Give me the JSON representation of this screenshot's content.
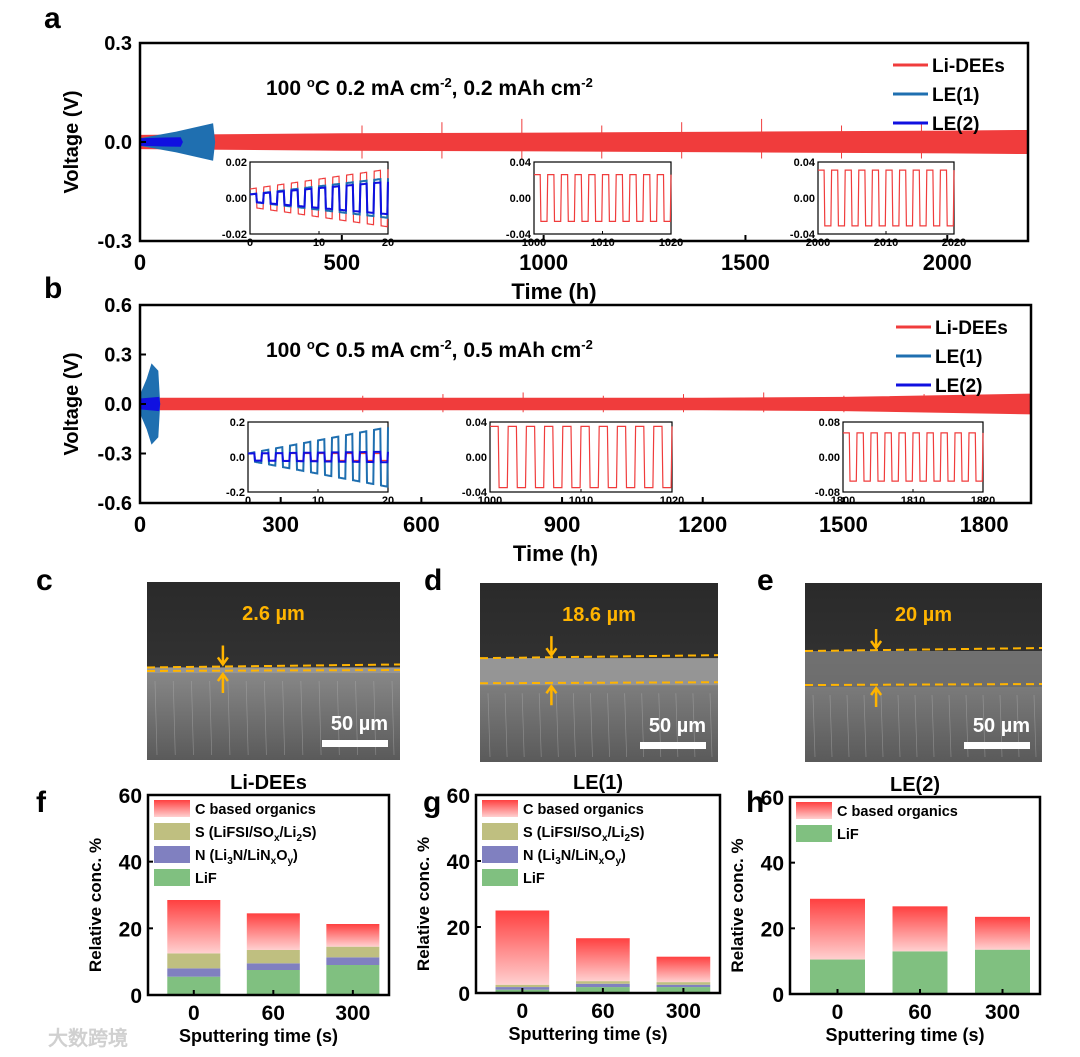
{
  "panel_labels": {
    "a": "a",
    "b": "b",
    "c": "c",
    "d": "d",
    "e": "e",
    "f": "f",
    "g": "g",
    "h": "h"
  },
  "colors": {
    "li_dees": "#f03c3c",
    "le1": "#1f6fb0",
    "le2": "#1010e0",
    "c_org_top": "#ff4040",
    "c_org_bottom": "#ffc8c8",
    "s": "#bfbf80",
    "n": "#8080c0",
    "lif": "#80c080",
    "sem_label": "#ffb400"
  },
  "watermark": "大数跨境",
  "chart_data": [
    {
      "id": "a",
      "type": "line",
      "annotation": "100 ºC 0.2 mA cm⁻², 0.2 mAh cm⁻²",
      "annotation_parts": {
        "pre": "100 ",
        "sup1": "o",
        "mid": "C 0.2 mA cm",
        "sup2": "-2",
        "mid2": ", 0.2 mAh cm",
        "sup3": "-2"
      },
      "xlabel": "Time (h)",
      "ylabel": "Voltage (V)",
      "xlim": [
        0,
        2200
      ],
      "ylim": [
        -0.3,
        0.3
      ],
      "xticks": [
        "0",
        "500",
        "1000",
        "1500",
        "2000"
      ],
      "xtick_values": [
        0,
        500,
        1000,
        1500,
        2000
      ],
      "yticks": [
        "0.3",
        "0.0",
        "-0.3"
      ],
      "ytick_values": [
        0.3,
        0,
        -0.3
      ],
      "legend": [
        "Li-DEEs",
        "LE(1)",
        "LE(2)"
      ],
      "legend_position": "top-right",
      "series": [
        {
          "name": "Li-DEEs",
          "envelope": [
            [
              0,
              0.02
            ],
            [
              500,
              0.025
            ],
            [
              1000,
              0.027
            ],
            [
              1500,
              0.03
            ],
            [
              2000,
              0.033
            ],
            [
              2200,
              0.035
            ]
          ]
        },
        {
          "name": "LE(1)",
          "envelope": [
            [
              0,
              0.01
            ],
            [
              90,
              0.03
            ],
            [
              180,
              0.055
            ],
            [
              185,
              0.0
            ]
          ]
        },
        {
          "name": "LE(2)",
          "envelope": [
            [
              0,
              0.01
            ],
            [
              60,
              0.012
            ],
            [
              100,
              0.013
            ],
            [
              105,
              0.0
            ]
          ]
        }
      ],
      "insets": [
        {
          "xlim": [
            0,
            20
          ],
          "ylim": [
            -0.02,
            0.02
          ],
          "xticks": [
            "0",
            "10",
            "20"
          ],
          "yticks": [
            "0.02",
            "0.00",
            "-0.02"
          ],
          "period_h": 2,
          "series": [
            {
              "name": "Li-DEEs",
              "amp": [
                0.005,
                0.016
              ]
            },
            {
              "name": "LE(1)",
              "amp": [
                0.002,
                0.011
              ]
            },
            {
              "name": "LE(2)",
              "amp": [
                0.002,
                0.009
              ]
            }
          ]
        },
        {
          "xlim": [
            1000,
            1020
          ],
          "ylim": [
            -0.04,
            0.04
          ],
          "xticks": [
            "1000",
            "1010",
            "1020"
          ],
          "yticks": [
            "0.04",
            "0.00",
            "-0.04"
          ],
          "period_h": 2,
          "series": [
            {
              "name": "Li-DEEs",
              "amp": [
                0.026,
                0.026
              ]
            }
          ]
        },
        {
          "xlim": [
            2000,
            2020
          ],
          "ylim": [
            -0.04,
            0.04
          ],
          "xticks": [
            "2000",
            "2010",
            "2020"
          ],
          "yticks": [
            "0.04",
            "0.00",
            "-0.04"
          ],
          "period_h": 2,
          "series": [
            {
              "name": "Li-DEEs",
              "amp": [
                0.031,
                0.031
              ]
            }
          ]
        }
      ]
    },
    {
      "id": "b",
      "type": "line",
      "annotation_parts": {
        "pre": "100 ",
        "sup1": "o",
        "mid": "C 0.5 mA cm",
        "sup2": "-2",
        "mid2": ", 0.5 mAh cm",
        "sup3": "-2"
      },
      "xlabel": "Time (h)",
      "ylabel": "Voltage (V)",
      "xlim": [
        0,
        1900
      ],
      "ylim": [
        -0.6,
        0.6
      ],
      "xticks": [
        "0",
        "300",
        "600",
        "900",
        "1200",
        "1500",
        "1800"
      ],
      "xtick_values": [
        0,
        300,
        600,
        900,
        1200,
        1500,
        1800
      ],
      "yticks": [
        "0.6",
        "0.3",
        "0.0",
        "-0.3",
        "-0.6"
      ],
      "ytick_values": [
        0.6,
        0.3,
        0,
        -0.3,
        -0.6
      ],
      "legend": [
        "Li-DEEs",
        "LE(1)",
        "LE(2)"
      ],
      "legend_position": "top-right",
      "series": [
        {
          "name": "Li-DEEs",
          "envelope": [
            [
              0,
              0.035
            ],
            [
              600,
              0.035
            ],
            [
              1200,
              0.035
            ],
            [
              1500,
              0.04
            ],
            [
              1900,
              0.06
            ]
          ]
        },
        {
          "name": "LE(1)",
          "envelope": [
            [
              0,
              0.05
            ],
            [
              15,
              0.15
            ],
            [
              25,
              0.24
            ],
            [
              38,
              0.2
            ],
            [
              42,
              0.0
            ]
          ]
        },
        {
          "name": "LE(2)",
          "envelope": [
            [
              0,
              0.03
            ],
            [
              40,
              0.04
            ],
            [
              42,
              0.0
            ]
          ]
        }
      ],
      "insets": [
        {
          "xlim": [
            0,
            20
          ],
          "ylim": [
            -0.2,
            0.2
          ],
          "xticks": [
            "0",
            "10",
            "20"
          ],
          "yticks": [
            "0.2",
            "0.0",
            "-0.2"
          ],
          "period_h": 2,
          "series": [
            {
              "name": "Li-DEEs",
              "amp": [
                0.02,
                0.02
              ]
            },
            {
              "name": "LE(1)",
              "amp": [
                0.02,
                0.17
              ]
            },
            {
              "name": "LE(2)",
              "amp": [
                0.02,
                0.03
              ]
            }
          ]
        },
        {
          "xlim": [
            1000,
            1020
          ],
          "ylim": [
            -0.04,
            0.04
          ],
          "xticks": [
            "1000",
            "1010",
            "1020"
          ],
          "yticks": [
            "0.04",
            "0.00",
            "-0.04"
          ],
          "period_h": 2,
          "series": [
            {
              "name": "Li-DEEs",
              "amp": [
                0.035,
                0.035
              ]
            }
          ]
        },
        {
          "xlim": [
            1800,
            1820
          ],
          "ylim": [
            -0.08,
            0.08
          ],
          "xticks": [
            "1800",
            "1810",
            "1820"
          ],
          "yticks": [
            "0.08",
            "0.00",
            "-0.08"
          ],
          "period_h": 2,
          "series": [
            {
              "name": "Li-DEEs",
              "amp": [
                0.055,
                0.055
              ]
            }
          ]
        }
      ]
    },
    {
      "id": "f",
      "type": "bar",
      "stacked": true,
      "title": "Li-DEEs",
      "xlabel": "Sputtering time (s)",
      "ylabel": "Relative conc. %",
      "ylim": [
        0,
        60
      ],
      "yticks": [
        "0",
        "20",
        "40",
        "60"
      ],
      "ytick_values": [
        0,
        20,
        40,
        60
      ],
      "categories": [
        "0",
        "60",
        "300"
      ],
      "legend_position": "top-left",
      "series": [
        {
          "name": "LiF",
          "key": "lif",
          "values": [
            5.5,
            7.5,
            9.0
          ]
        },
        {
          "name": "N (Li3N/LiNxOy)",
          "key": "n",
          "values": [
            2.5,
            2.0,
            2.3
          ]
        },
        {
          "name": "S (LiFSI/SOx/Li2S)",
          "key": "s",
          "values": [
            4.5,
            4.0,
            3.2
          ]
        },
        {
          "name": "C based organics",
          "key": "c",
          "values": [
            16.0,
            11.0,
            6.8
          ]
        }
      ]
    },
    {
      "id": "g",
      "type": "bar",
      "stacked": true,
      "title": "LE(1)",
      "xlabel": "Sputtering time (s)",
      "ylabel": "Relative conc. %",
      "ylim": [
        0,
        60
      ],
      "yticks": [
        "0",
        "20",
        "40",
        "60"
      ],
      "ytick_values": [
        0,
        20,
        40,
        60
      ],
      "categories": [
        "0",
        "60",
        "300"
      ],
      "legend_position": "top-left",
      "series": [
        {
          "name": "LiF",
          "key": "lif",
          "values": [
            1.0,
            1.8,
            1.8
          ]
        },
        {
          "name": "N (Li3N/LiNxOy)",
          "key": "n",
          "values": [
            0.8,
            1.0,
            0.7
          ]
        },
        {
          "name": "S (LiFSI/SOx/Li2S)",
          "key": "s",
          "values": [
            0.7,
            0.8,
            0.8
          ]
        },
        {
          "name": "C based organics",
          "key": "c",
          "values": [
            22.5,
            13.0,
            7.7
          ]
        }
      ]
    },
    {
      "id": "h",
      "type": "bar",
      "stacked": true,
      "title": "LE(2)",
      "xlabel": "Sputtering time (s)",
      "ylabel": "Relative conc. %",
      "ylim": [
        0,
        60
      ],
      "yticks": [
        "0",
        "20",
        "40",
        "60"
      ],
      "ytick_values": [
        0,
        20,
        40,
        60
      ],
      "categories": [
        "0",
        "60",
        "300"
      ],
      "legend_position": "top-left",
      "series": [
        {
          "name": "LiF",
          "key": "lif",
          "values": [
            10.5,
            13.0,
            13.5
          ]
        },
        {
          "name": "C based organics",
          "key": "c",
          "values": [
            18.5,
            13.7,
            10.0
          ]
        }
      ]
    }
  ],
  "sem": [
    {
      "id": "c",
      "thickness": "2.6 µm",
      "scale_bar": "50 µm"
    },
    {
      "id": "d",
      "thickness": "18.6 µm",
      "scale_bar": "50 µm"
    },
    {
      "id": "e",
      "thickness": "20 µm",
      "scale_bar": "50 µm"
    }
  ],
  "legend_rich": {
    "c": {
      "t": "C based organics"
    },
    "s": {
      "a": "S (LiFSI/SO",
      "sub1": "x",
      "b": "/Li",
      "sub2": "2",
      "c": "S)"
    },
    "n": {
      "a": "N (Li",
      "sub1": "3",
      "b": "N/LiN",
      "sub2": "x",
      "c": "O",
      "sub3": "y",
      "d": ")"
    },
    "lif": {
      "t": "LiF"
    }
  }
}
